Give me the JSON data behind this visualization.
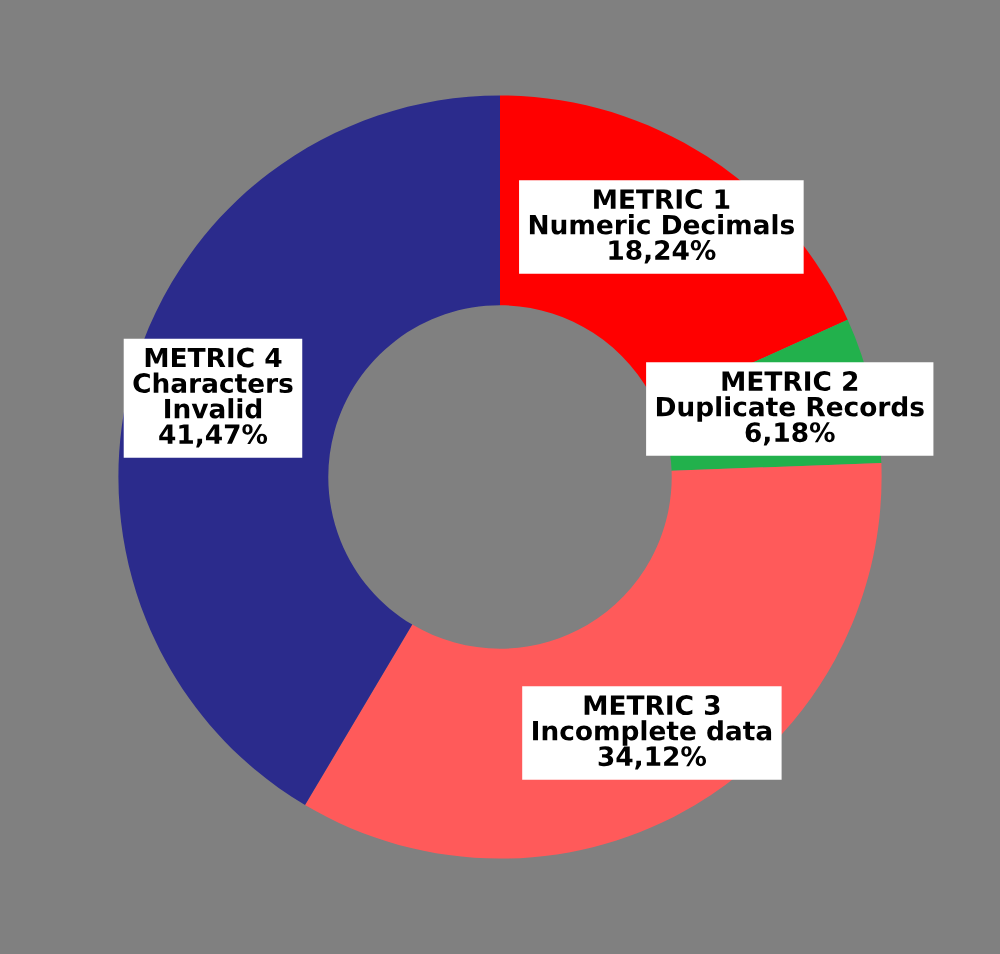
{
  "chart_data": {
    "type": "donut",
    "categories": [
      "METRIC 1\nNumeric Decimals",
      "METRIC 2\nDuplicate Records",
      "METRIC 3\nIncomplete data",
      "METRIC 4\nCharacters\nInvalid"
    ],
    "values": [
      18.24,
      6.18,
      34.12,
      41.47
    ],
    "value_labels": [
      "18,24%",
      "6,18%",
      "34,12%",
      "41,47%"
    ],
    "colors": [
      "#ff0000",
      "#22b14c",
      "#ff5a5a",
      "#2b2b8c"
    ]
  }
}
